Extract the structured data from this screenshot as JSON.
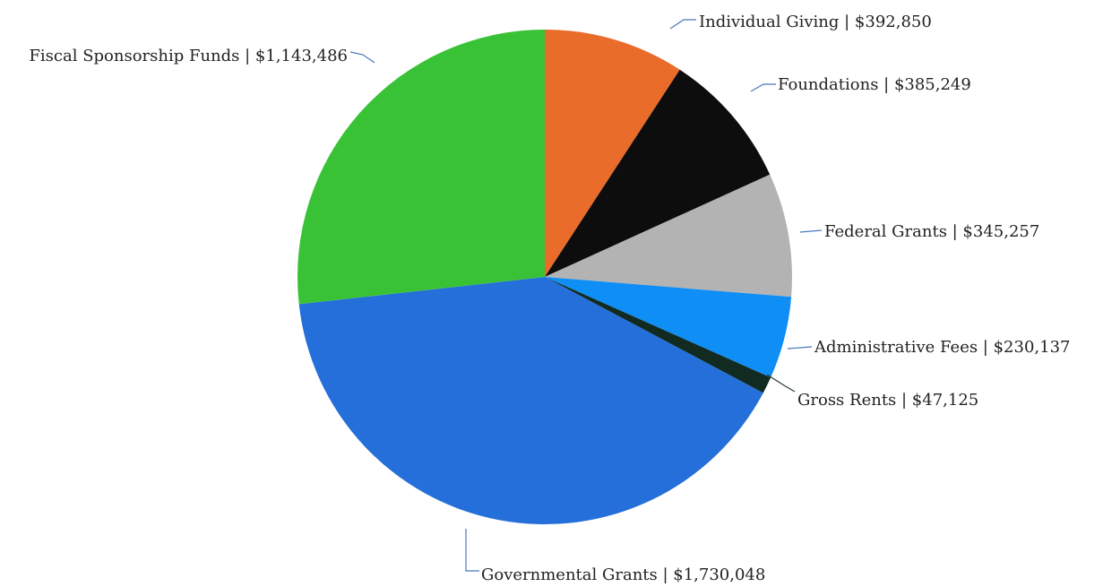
{
  "chart_data": {
    "type": "pie",
    "title": "",
    "unit": "$",
    "slices": [
      {
        "label": "Individual Giving",
        "value": 392850,
        "display": "$392,850",
        "color": "#ea6c2b",
        "leader_color": "#4a78b8"
      },
      {
        "label": "Foundations",
        "value": 385249,
        "display": "$385,249",
        "color": "#0d0d0d",
        "leader_color": "#4a78b8"
      },
      {
        "label": "Federal Grants",
        "value": 345257,
        "display": "$345,257",
        "color": "#b3b3b3",
        "leader_color": "#4a78b8"
      },
      {
        "label": "Administrative Fees",
        "value": 230137,
        "display": "$230,137",
        "color": "#0f8ef5",
        "leader_color": "#4a78b8"
      },
      {
        "label": "Gross Rents",
        "value": 47125,
        "display": "$47,125",
        "color": "#112b22",
        "leader_color": "#2a3a34"
      },
      {
        "label": "Governmental Grants",
        "value": 1730048,
        "display": "$1,730,048",
        "color": "#246fd9",
        "leader_color": "#4a78b8"
      },
      {
        "label": "Fiscal Sponsorship Funds",
        "value": 1143486,
        "display": "$1,143,486",
        "color": "#3ac236",
        "leader_color": "#4a78b8"
      }
    ],
    "start_angle": "12 o'clock",
    "direction": "clockwise",
    "legend": "none",
    "label_separator": " | "
  }
}
